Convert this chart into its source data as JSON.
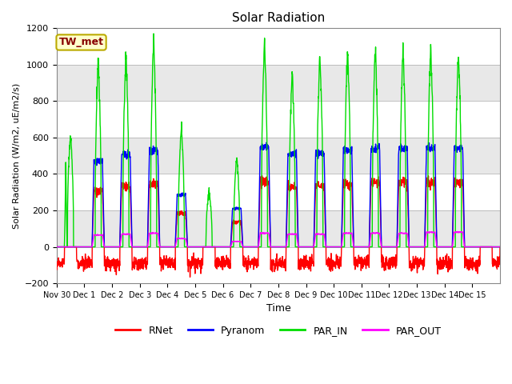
{
  "title": "Solar Radiation",
  "xlabel": "Time",
  "ylabel": "Solar Radiation (W/m2, uE/m2/s)",
  "ylim": [
    -200,
    1200
  ],
  "yticks": [
    -200,
    0,
    200,
    400,
    600,
    800,
    1000,
    1200
  ],
  "series_colors": {
    "RNet": "#ff0000",
    "Pyranom": "#0000ff",
    "PAR_IN": "#00dd00",
    "PAR_OUT": "#ff00ff"
  },
  "annotation_text": "TW_met",
  "annotation_bg": "#ffffcc",
  "annotation_border": "#bbaa00",
  "annotation_text_color": "#880000",
  "n_days": 16,
  "par_in_peaks": [
    630,
    1040,
    1060,
    1140,
    665,
    310,
    500,
    1130,
    950,
    1060,
    1090,
    1090,
    1090,
    1090,
    1085,
    0
  ],
  "pyranom_peaks": [
    0,
    470,
    510,
    530,
    285,
    0,
    210,
    550,
    510,
    510,
    530,
    540,
    540,
    540,
    540,
    0
  ],
  "par_out_peaks": [
    0,
    65,
    70,
    75,
    45,
    0,
    30,
    75,
    70,
    70,
    75,
    75,
    75,
    80,
    80,
    0
  ],
  "rnet_night": -90,
  "legend_entries": [
    "RNet",
    "Pyranom",
    "PAR_IN",
    "PAR_OUT"
  ],
  "tick_labels": [
    "Nov 30",
    "Dec 1",
    "Dec 2",
    "Dec 3",
    "Dec 4",
    "Dec 5",
    "Dec 6",
    "Dec 7",
    "Dec 8",
    "Dec 9",
    "Dec 10",
    "Dec 11",
    "Dec 12",
    "Dec 13",
    "Dec 14",
    "Dec 15"
  ],
  "band_colors": [
    "#ffffff",
    "#e8e8e8"
  ]
}
